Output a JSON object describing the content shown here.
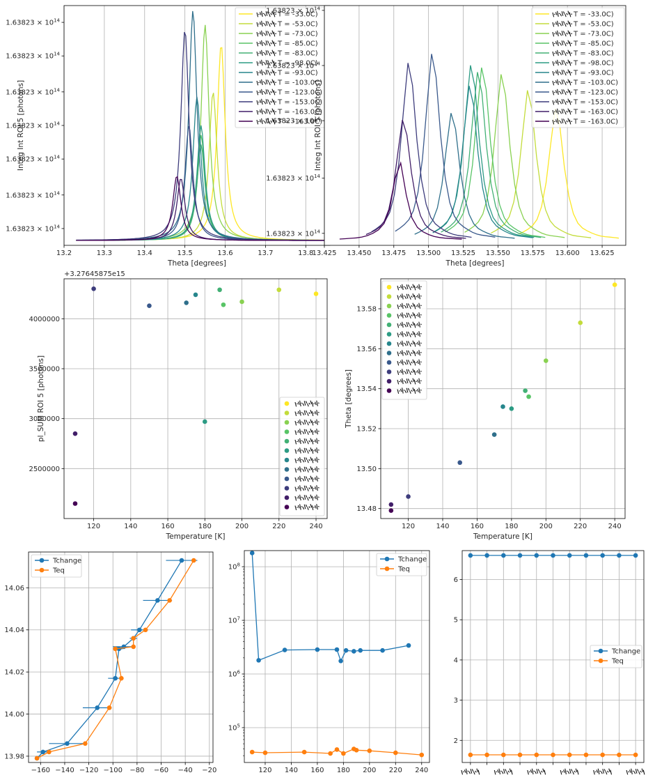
{
  "chart_data": [
    {
      "id": "p1",
      "type": "line",
      "xlabel": "Theta [degrees]",
      "ylabel": "Integ Int ROI 5 [photons]",
      "xlim": [
        13.2,
        13.86
      ],
      "ylim": [
        0,
        1.0
      ],
      "xticks": [
        13.2,
        13.3,
        13.4,
        13.5,
        13.6,
        13.7,
        13.8
      ],
      "xtick_labels": [
        "13.2",
        "13.3",
        "13.4",
        "13.5",
        "13.6",
        "13.7",
        "13.8"
      ],
      "yticks": [
        0.07,
        0.21,
        0.36,
        0.5,
        0.64,
        0.79,
        0.93
      ],
      "ytick_labels": [
        "1.63823 × 10^14",
        "1.63823 × 10^14",
        "1.63823 × 10^14",
        "1.63823 × 10^14",
        "1.63823 × 10^14",
        "1.63823 × 10^14",
        "1.63823 × 10^14"
      ],
      "grid": "x",
      "legend": "top-right",
      "series": [
        {
          "name": "T = -33.0C)",
          "peak": 13.59,
          "height": 0.82,
          "width": 0.012
        },
        {
          "name": "T = -53.0C)",
          "peak": 13.57,
          "height": 0.62,
          "width": 0.012
        },
        {
          "name": "T = -73.0C)",
          "peak": 13.55,
          "height": 0.9,
          "width": 0.012
        },
        {
          "name": "T = -85.0C)",
          "peak": 13.54,
          "height": 0.44,
          "width": 0.012
        },
        {
          "name": "T = -83.0C)",
          "peak": 13.54,
          "height": 0.4,
          "width": 0.012
        },
        {
          "name": "T = -98.0C)",
          "peak": 13.54,
          "height": 0.48,
          "width": 0.012
        },
        {
          "name": "T = -93.0C)",
          "peak": 13.53,
          "height": 0.6,
          "width": 0.012
        },
        {
          "name": "T = -103.0C)",
          "peak": 13.52,
          "height": 0.96,
          "width": 0.012
        },
        {
          "name": "T = -123.0C)",
          "peak": 13.51,
          "height": 0.48,
          "width": 0.012
        },
        {
          "name": "T = -153.0C)",
          "peak": 13.5,
          "height": 0.88,
          "width": 0.012
        },
        {
          "name": "T = -163.0C)",
          "peak": 13.49,
          "height": 0.26,
          "width": 0.012
        },
        {
          "name": "T = -163.0C)",
          "peak": 13.48,
          "height": 0.27,
          "width": 0.012
        }
      ]
    },
    {
      "id": "p2",
      "type": "line",
      "xlabel": "Theta [degrees]",
      "ylabel": "Integ Int ROI 5 [photons]",
      "xlim": [
        13.425,
        13.642
      ],
      "ylim": [
        0,
        1.0
      ],
      "xticks": [
        13.425,
        13.45,
        13.475,
        13.5,
        13.525,
        13.55,
        13.575,
        13.6,
        13.625
      ],
      "xtick_labels": [
        "13.425",
        "13.450",
        "13.475",
        "13.500",
        "13.525",
        "13.550",
        "13.575",
        "13.600",
        "13.625"
      ],
      "yticks": [
        0.05,
        0.28,
        0.52,
        0.75,
        0.98
      ],
      "ytick_labels": [
        "1.63823 × 10^14",
        "1.63823 × 10^14",
        "1.63823 × 10^14",
        "1.63823 × 10^14",
        "1.63823 × 10^14"
      ],
      "grid": "x",
      "legend": "top-right",
      "series": [
        {
          "name": "T = -33.0C)",
          "peak": 13.592,
          "height": 0.58,
          "x0": 13.565,
          "x1": 13.637
        },
        {
          "name": "T = -53.0C)",
          "peak": 13.572,
          "height": 0.66,
          "x0": 13.545,
          "x1": 13.617
        },
        {
          "name": "T = -73.0C)",
          "peak": 13.553,
          "height": 0.73,
          "x0": 13.526,
          "x1": 13.598
        },
        {
          "name": "T = -85.0C)",
          "peak": 13.539,
          "height": 0.76,
          "x0": 13.512,
          "x1": 13.584
        },
        {
          "name": "T = -83.0C)",
          "peak": 13.536,
          "height": 0.74,
          "x0": 13.509,
          "x1": 13.581
        },
        {
          "name": "T = -98.0C)",
          "peak": 13.531,
          "height": 0.77,
          "x0": 13.504,
          "x1": 13.576
        },
        {
          "name": "T = -93.0C)",
          "peak": 13.53,
          "height": 0.68,
          "x0": 13.503,
          "x1": 13.575
        },
        {
          "name": "T = -103.0C)",
          "peak": 13.517,
          "height": 0.56,
          "x0": 13.49,
          "x1": 13.562
        },
        {
          "name": "T = -123.0C)",
          "peak": 13.503,
          "height": 0.82,
          "x0": 13.476,
          "x1": 13.548
        },
        {
          "name": "T = -153.0C)",
          "peak": 13.486,
          "height": 0.78,
          "x0": 13.459,
          "x1": 13.531
        },
        {
          "name": "T = -163.0C)",
          "peak": 13.482,
          "height": 0.53,
          "x0": 13.455,
          "x1": 13.527
        },
        {
          "name": "T = -163.0C)",
          "peak": 13.479,
          "height": 0.32,
          "x0": 13.436,
          "x1": 13.524
        }
      ]
    },
    {
      "id": "p3",
      "type": "scatter",
      "xlabel": "Temperature [K]",
      "ylabel": "pl_SUM ROI 5 [photons]",
      "offset_text": "+3.27645875e15",
      "xlim": [
        104,
        246
      ],
      "ylim": [
        2000000,
        4400000
      ],
      "xticks": [
        120,
        140,
        160,
        180,
        200,
        220,
        240
      ],
      "yticks": [
        2500000,
        3000000,
        3500000,
        4000000
      ],
      "ytick_labels": [
        "2500000",
        "3000000",
        "3500000",
        "4000000"
      ],
      "grid": "both",
      "legend": "lower-right",
      "points": [
        {
          "x": 110,
          "y": 2150000
        },
        {
          "x": 110,
          "y": 2850000
        },
        {
          "x": 120,
          "y": 4300000
        },
        {
          "x": 150,
          "y": 4130000
        },
        {
          "x": 170,
          "y": 4160000
        },
        {
          "x": 175,
          "y": 4240000
        },
        {
          "x": 180,
          "y": 2970000
        },
        {
          "x": 188,
          "y": 4290000
        },
        {
          "x": 190,
          "y": 4140000
        },
        {
          "x": 200,
          "y": 4170000
        },
        {
          "x": 220,
          "y": 4290000
        },
        {
          "x": 240,
          "y": 4250000
        }
      ]
    },
    {
      "id": "p4",
      "type": "scatter",
      "xlabel": "Temperature [K]",
      "ylabel": "Theta [degrees]",
      "xlim": [
        104,
        246
      ],
      "ylim": [
        13.475,
        13.595
      ],
      "xticks": [
        120,
        140,
        160,
        180,
        200,
        220,
        240
      ],
      "yticks": [
        13.48,
        13.5,
        13.52,
        13.54,
        13.56,
        13.58
      ],
      "ytick_labels": [
        "13.48",
        "13.50",
        "13.52",
        "13.54",
        "13.56",
        "13.58"
      ],
      "grid": "both",
      "legend": "upper-left",
      "points": [
        {
          "x": 110,
          "y": 13.479
        },
        {
          "x": 110,
          "y": 13.482
        },
        {
          "x": 120,
          "y": 13.486
        },
        {
          "x": 150,
          "y": 13.503
        },
        {
          "x": 170,
          "y": 13.517
        },
        {
          "x": 175,
          "y": 13.531
        },
        {
          "x": 180,
          "y": 13.53
        },
        {
          "x": 188,
          "y": 13.539
        },
        {
          "x": 190,
          "y": 13.536
        },
        {
          "x": 200,
          "y": 13.554
        },
        {
          "x": 220,
          "y": 13.573
        },
        {
          "x": 240,
          "y": 13.592
        }
      ]
    },
    {
      "id": "p5",
      "type": "line",
      "xlim": [
        -170,
        -17
      ],
      "ylim": [
        13.977,
        14.077
      ],
      "xticks": [
        -160,
        -140,
        -120,
        -100,
        -80,
        -60,
        -40,
        -20
      ],
      "xtick_labels": [
        "−160",
        "−140",
        "−120",
        "−100",
        "−80",
        "−60",
        "−40",
        "−20"
      ],
      "yticks": [
        13.98,
        14.0,
        14.02,
        14.04,
        14.06
      ],
      "ytick_labels": [
        "13.98",
        "14.00",
        "14.02",
        "14.04",
        "14.06"
      ],
      "grid": "both",
      "legend": "upper-left",
      "series": [
        {
          "name": "Tchange",
          "color": "#1f77b4",
          "x": [
            -163,
            -158,
            -138,
            -113,
            -98,
            -95,
            -91,
            -83,
            -78,
            -63,
            -43
          ],
          "y": [
            13.979,
            13.982,
            13.986,
            14.003,
            14.017,
            14.031,
            14.032,
            14.036,
            14.04,
            14.054,
            14.073
          ],
          "xerr": [
            0,
            5,
            15,
            12,
            6,
            3,
            9,
            3,
            7,
            12,
            13
          ]
        },
        {
          "name": "Teq",
          "color": "#ff7f0e",
          "x": [
            -163,
            -153,
            -123,
            -103,
            -93,
            -98,
            -83,
            -83,
            -73,
            -53,
            -33
          ],
          "y": [
            13.979,
            13.982,
            13.986,
            14.003,
            14.017,
            14.031,
            14.032,
            14.036,
            14.04,
            14.054,
            14.073
          ]
        }
      ]
    },
    {
      "id": "p6",
      "type": "line",
      "xlim": [
        104,
        246
      ],
      "logy": true,
      "ylim_exp": [
        4.35,
        8.3
      ],
      "xticks": [
        120,
        140,
        160,
        180,
        200,
        220,
        240
      ],
      "yticks": [
        5,
        6,
        7,
        8
      ],
      "ytick_labels": [
        "10^5",
        "10^6",
        "10^7",
        "10^8"
      ],
      "grid": "both",
      "legend": "upper-right",
      "series": [
        {
          "name": "Tchange",
          "color": "#1f77b4",
          "x": [
            110,
            115,
            135,
            160,
            175,
            178,
            182,
            188,
            193,
            210,
            230
          ],
          "y": [
            180000000,
            1800000,
            2800000,
            2850000,
            2850000,
            1750000,
            2750000,
            2650000,
            2750000,
            2750000,
            3400000
          ]
        },
        {
          "name": "Teq",
          "color": "#ff7f0e",
          "x": [
            110,
            120,
            150,
            170,
            175,
            180,
            188,
            190,
            200,
            220,
            240
          ],
          "y": [
            35000,
            34000,
            35000,
            33000,
            39000,
            33000,
            40000,
            38000,
            37000,
            34000,
            31000
          ]
        }
      ]
    },
    {
      "id": "p7",
      "type": "line",
      "categories": 11,
      "ylim": [
        1.45,
        6.72
      ],
      "yticks": [
        2,
        3,
        4,
        5,
        6
      ],
      "ytick_labels": [
        "2",
        "3",
        "4",
        "5",
        "6"
      ],
      "grid": "both",
      "legend": "center-right",
      "series": [
        {
          "name": "Tchange",
          "color": "#1f77b4",
          "values": [
            6.6,
            6.6,
            6.6,
            6.6,
            6.6,
            6.6,
            6.6,
            6.6,
            6.6,
            6.6,
            6.6
          ]
        },
        {
          "name": "Teq",
          "color": "#ff7f0e",
          "values": [
            1.64,
            1.64,
            1.64,
            1.64,
            1.64,
            1.64,
            1.64,
            1.64,
            1.64,
            1.64,
            1.64
          ]
        }
      ]
    }
  ]
}
